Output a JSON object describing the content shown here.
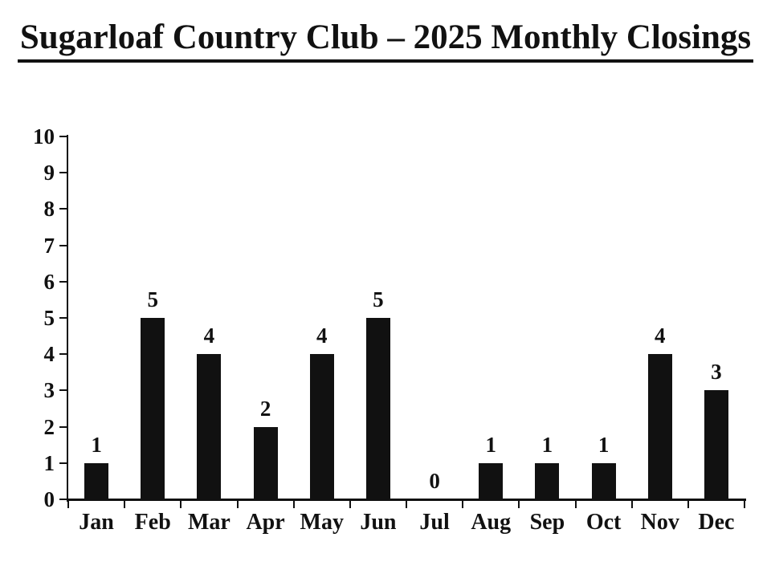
{
  "page": {
    "background": "#ffffff"
  },
  "title": "Sugarloaf Country Club – 2025 Monthly Closings",
  "chart_data": {
    "type": "bar",
    "title": "Sugarloaf Country Club – 2025 Monthly Closings",
    "categories": [
      "Jan",
      "Feb",
      "Mar",
      "Apr",
      "May",
      "Jun",
      "Jul",
      "Aug",
      "Sep",
      "Oct",
      "Nov",
      "Dec"
    ],
    "values": [
      1,
      5,
      4,
      2,
      4,
      5,
      0,
      1,
      1,
      1,
      4,
      3
    ],
    "xlabel": "",
    "ylabel": "",
    "ylim": [
      0,
      10
    ],
    "yticks": [
      0,
      1,
      2,
      3,
      4,
      5,
      6,
      7,
      8,
      9,
      10
    ],
    "grid": false,
    "legend": false,
    "data_labels": true,
    "bar_color": "#111111",
    "axis_color": "#111111",
    "text_color": "#111111",
    "background": "#ffffff"
  }
}
